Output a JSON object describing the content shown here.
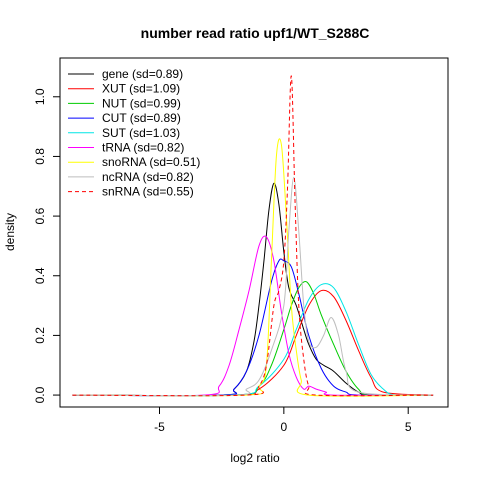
{
  "chart_data": {
    "type": "line",
    "title": "number read ratio upf1/WT_S288C",
    "xlabel": "log2 ratio",
    "ylabel": "density",
    "xlim": [
      -9.0,
      6.6
    ],
    "ylim": [
      -0.04,
      1.13
    ],
    "xticks": [
      -5,
      0,
      5
    ],
    "xtick_labels": [
      "-5",
      "0",
      "5"
    ],
    "yticks": [
      0.0,
      0.2,
      0.4,
      0.6,
      0.8,
      1.0
    ],
    "ytick_labels": [
      "0.0",
      "0.2",
      "0.4",
      "0.6",
      "0.8",
      "1.0"
    ],
    "legend_position": "top-left",
    "series": [
      {
        "name": "gene (sd=0.89)",
        "color": "#000000",
        "dashed": false,
        "x": [
          -8.5,
          -2.5,
          -2.0,
          -1.5,
          -1.2,
          -1.0,
          -0.8,
          -0.6,
          -0.4,
          -0.2,
          0.0,
          0.2,
          0.5,
          0.8,
          1.0,
          1.3,
          1.6,
          2.0,
          2.5,
          3.0,
          3.5,
          6.0
        ],
        "y": [
          0.0,
          0.0,
          0.02,
          0.08,
          0.18,
          0.3,
          0.45,
          0.62,
          0.71,
          0.64,
          0.48,
          0.36,
          0.3,
          0.22,
          0.17,
          0.12,
          0.1,
          0.08,
          0.04,
          0.01,
          0.0,
          0.0
        ]
      },
      {
        "name": "XUT (sd=1.09)",
        "color": "#ff0000",
        "dashed": false,
        "x": [
          -8.5,
          -2.0,
          -1.0,
          0.0,
          0.5,
          1.0,
          1.5,
          2.0,
          2.5,
          3.0,
          3.5,
          4.0,
          6.0
        ],
        "y": [
          0.0,
          0.0,
          0.02,
          0.1,
          0.2,
          0.3,
          0.35,
          0.33,
          0.25,
          0.15,
          0.06,
          0.01,
          0.0
        ]
      },
      {
        "name": "NUT (sd=0.99)",
        "color": "#00cc00",
        "dashed": false,
        "x": [
          -8.5,
          -2.0,
          -1.0,
          -0.5,
          0.0,
          0.3,
          0.6,
          0.9,
          1.2,
          1.5,
          2.0,
          2.5,
          3.0,
          3.5,
          6.0
        ],
        "y": [
          0.0,
          0.0,
          0.03,
          0.1,
          0.22,
          0.3,
          0.36,
          0.38,
          0.34,
          0.27,
          0.17,
          0.08,
          0.02,
          0.0,
          0.0
        ]
      },
      {
        "name": "CUT (sd=0.89)",
        "color": "#0000ff",
        "dashed": false,
        "x": [
          -8.5,
          -2.5,
          -2.0,
          -1.5,
          -1.0,
          -0.5,
          -0.2,
          0.0,
          0.3,
          0.6,
          1.0,
          1.5,
          2.0,
          2.5,
          3.0,
          6.0
        ],
        "y": [
          0.0,
          0.0,
          0.02,
          0.08,
          0.2,
          0.38,
          0.45,
          0.45,
          0.43,
          0.34,
          0.2,
          0.09,
          0.03,
          0.01,
          0.0,
          0.0
        ]
      },
      {
        "name": "SUT (sd=1.03)",
        "color": "#00e5e5",
        "dashed": false,
        "x": [
          -8.5,
          -2.0,
          -1.0,
          0.0,
          0.5,
          1.0,
          1.5,
          2.0,
          2.5,
          3.0,
          3.5,
          4.0,
          4.5,
          6.0
        ],
        "y": [
          0.0,
          0.0,
          0.03,
          0.12,
          0.22,
          0.32,
          0.37,
          0.36,
          0.28,
          0.17,
          0.07,
          0.02,
          0.0,
          0.0
        ]
      },
      {
        "name": "tRNA (sd=0.82)",
        "color": "#ff00ff",
        "dashed": false,
        "x": [
          -8.5,
          -3.2,
          -2.6,
          -2.2,
          -1.8,
          -1.4,
          -1.0,
          -0.7,
          -0.4,
          -0.1,
          0.2,
          0.5,
          0.8,
          1.0,
          1.3,
          1.7,
          2.0,
          6.0
        ],
        "y": [
          0.0,
          0.0,
          0.03,
          0.1,
          0.22,
          0.35,
          0.5,
          0.53,
          0.45,
          0.28,
          0.14,
          0.06,
          0.02,
          0.03,
          0.02,
          0.01,
          0.0,
          0.0
        ]
      },
      {
        "name": "snoRNA (sd=0.51)",
        "color": "#ffff00",
        "dashed": false,
        "x": [
          -8.5,
          -1.5,
          -1.0,
          -0.7,
          -0.5,
          -0.3,
          -0.1,
          0.1,
          0.3,
          0.5,
          0.7,
          1.0,
          6.0
        ],
        "y": [
          0.0,
          0.0,
          0.03,
          0.1,
          0.45,
          0.8,
          0.84,
          0.6,
          0.3,
          0.15,
          0.05,
          0.0,
          0.0
        ]
      },
      {
        "name": "ncRNA (sd=0.82)",
        "color": "#bebebe",
        "dashed": false,
        "x": [
          -8.5,
          -2.0,
          -1.5,
          -1.0,
          -0.5,
          0.0,
          0.2,
          0.4,
          0.6,
          0.8,
          1.0,
          1.3,
          1.6,
          1.9,
          2.2,
          2.5,
          3.0,
          6.0
        ],
        "y": [
          0.0,
          0.0,
          0.02,
          0.05,
          0.15,
          0.3,
          0.55,
          0.73,
          0.55,
          0.3,
          0.18,
          0.16,
          0.2,
          0.26,
          0.2,
          0.08,
          0.01,
          0.0
        ]
      },
      {
        "name": "snRNA (sd=0.55)",
        "color": "#ff0000",
        "dashed": true,
        "x": [
          -8.5,
          -1.5,
          -1.0,
          -0.7,
          -0.4,
          -0.2,
          0.0,
          0.15,
          0.3,
          0.45,
          0.6,
          0.8,
          1.0,
          1.3,
          6.0
        ],
        "y": [
          0.0,
          0.0,
          0.03,
          0.1,
          0.3,
          0.35,
          0.45,
          0.7,
          1.07,
          0.65,
          0.3,
          0.12,
          0.03,
          0.0,
          0.0
        ]
      }
    ]
  }
}
